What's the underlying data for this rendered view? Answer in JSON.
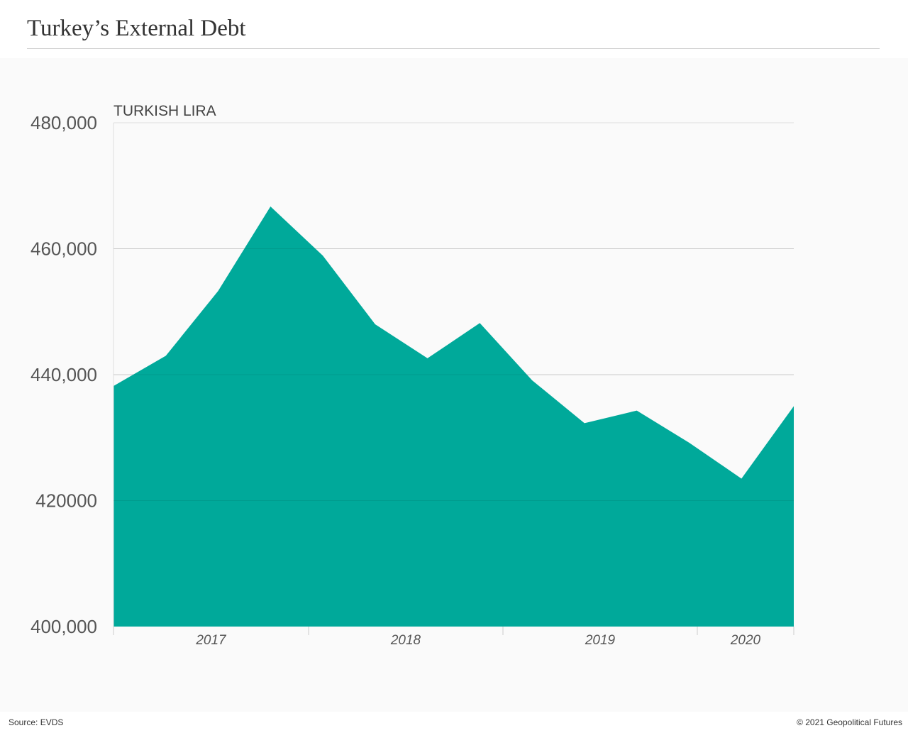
{
  "header": {
    "title": "Turkey’s External Debt"
  },
  "footer": {
    "source": "Source: EVDS",
    "credit": "© 2021 Geopolitical Futures"
  },
  "colors": {
    "area": "#00a99a",
    "grid": "#dddddd",
    "axis": "#cccccc"
  },
  "chart_data": {
    "type": "area",
    "title": "Turkey’s External Debt",
    "ylabel": "TURKISH LIRA",
    "ylim": [
      400000,
      480000
    ],
    "yticks": [
      400000,
      420000,
      440000,
      460000,
      480000
    ],
    "ytick_labels": [
      "400,000",
      "420000",
      "440,000",
      "460,000",
      "480,000"
    ],
    "x_year_labels": [
      "2017",
      "2018",
      "2019",
      "2020"
    ],
    "x": [
      "2016-Q4",
      "2017-Q1",
      "2017-Q2",
      "2017-Q3",
      "2017-Q4",
      "2018-Q1",
      "2018-Q2",
      "2018-Q3",
      "2018-Q4",
      "2019-Q1",
      "2019-Q2",
      "2019-Q3",
      "2019-Q4",
      "2020-Q1"
    ],
    "series": [
      {
        "values": [
          438200,
          443000,
          453300,
          466700,
          458900,
          448000,
          442600,
          448200,
          439100,
          432300,
          434300,
          429200,
          423500,
          435000
        ]
      }
    ],
    "grid": true,
    "legend": "none"
  }
}
